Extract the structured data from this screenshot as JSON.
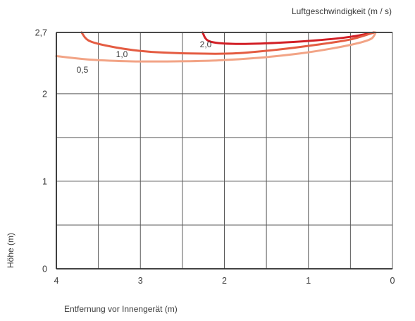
{
  "chart_data": {
    "type": "line",
    "title": "",
    "legend_title": "Luftgeschwindigkeit (m / s)",
    "xlabel": "Entfernung vor Innengerät (m)",
    "ylabel": "Höhe (m)",
    "x_reversed": true,
    "xlim": [
      4,
      0
    ],
    "ylim": [
      0,
      2.7
    ],
    "x_ticks": [
      {
        "value": 4,
        "label": "4"
      },
      {
        "value": 3,
        "label": "3"
      },
      {
        "value": 2,
        "label": "2"
      },
      {
        "value": 1,
        "label": "1"
      },
      {
        "value": 0,
        "label": "0"
      }
    ],
    "y_ticks": [
      {
        "value": 0,
        "label": "0"
      },
      {
        "value": 1,
        "label": "1"
      },
      {
        "value": 2,
        "label": "2"
      },
      {
        "value": 2.7,
        "label": "2,7"
      }
    ],
    "x_grid": [
      4,
      3.5,
      3,
      2.5,
      2,
      1.5,
      1,
      0.5,
      0
    ],
    "y_grid": [
      0,
      0.5,
      1,
      1.5,
      2,
      2.7
    ],
    "grid": true,
    "series": [
      {
        "name": "2,0",
        "color": "#d21f26",
        "points": [
          [
            2.26,
            2.7
          ],
          [
            2.18,
            2.6
          ],
          [
            1.9,
            2.57
          ],
          [
            1.4,
            2.58
          ],
          [
            0.9,
            2.61
          ],
          [
            0.5,
            2.65
          ],
          [
            0.22,
            2.7
          ]
        ]
      },
      {
        "name": "1,0",
        "color": "#e45c42",
        "points": [
          [
            3.7,
            2.7
          ],
          [
            3.6,
            2.6
          ],
          [
            3.3,
            2.53
          ],
          [
            2.9,
            2.48
          ],
          [
            2.4,
            2.46
          ],
          [
            1.9,
            2.46
          ],
          [
            1.4,
            2.5
          ],
          [
            0.9,
            2.56
          ],
          [
            0.5,
            2.62
          ],
          [
            0.22,
            2.7
          ]
        ]
      },
      {
        "name": "0,5",
        "color": "#f2a486",
        "points": [
          [
            4.0,
            2.43
          ],
          [
            3.6,
            2.39
          ],
          [
            3.1,
            2.37
          ],
          [
            2.6,
            2.37
          ],
          [
            2.1,
            2.38
          ],
          [
            1.6,
            2.41
          ],
          [
            1.1,
            2.46
          ],
          [
            0.7,
            2.52
          ],
          [
            0.4,
            2.58
          ],
          [
            0.25,
            2.63
          ],
          [
            0.2,
            2.7
          ]
        ]
      }
    ]
  }
}
